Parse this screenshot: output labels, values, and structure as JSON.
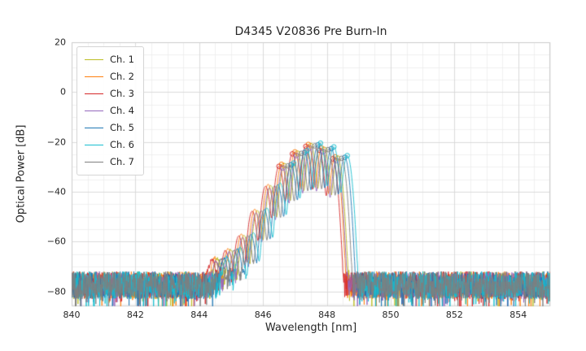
{
  "chart_data": {
    "type": "line",
    "title": "D4345 V20836 Pre Burn-In",
    "xlabel": "Wavelength [nm]",
    "ylabel": "Optical Power [dB]",
    "xlim": [
      840,
      855
    ],
    "ylim": [
      -86,
      20
    ],
    "x_tick_values": [
      840,
      842,
      844,
      846,
      848,
      850,
      852,
      854
    ],
    "x_tick_labels": [
      "840",
      "842",
      "844",
      "846",
      "848",
      "850",
      "852",
      "854"
    ],
    "y_tick_values": [
      20,
      0,
      -20,
      -40,
      -60,
      -80
    ],
    "y_tick_labels": [
      "20",
      "0",
      "−20",
      "−40",
      "−60",
      "−80"
    ],
    "grid": {
      "on": true,
      "major_x_step": 2,
      "major_y_step": 20,
      "minor_x_step": 0.5,
      "minor_y_step": 5
    },
    "legend_position": "upper left",
    "series": [
      {
        "name": "Ch. 1",
        "color": "#bcbd22",
        "peak_nm": 847.5,
        "peak_db": -21.5
      },
      {
        "name": "Ch. 2",
        "color": "#ff7f0e",
        "peak_nm": 847.42,
        "peak_db": -21.0
      },
      {
        "name": "Ch. 3",
        "color": "#d62728",
        "peak_nm": 847.34,
        "peak_db": -21.8
      },
      {
        "name": "Ch. 4",
        "color": "#9467bd",
        "peak_nm": 847.46,
        "peak_db": -22.5
      },
      {
        "name": "Ch. 5",
        "color": "#1f77b4",
        "peak_nm": 847.72,
        "peak_db": -21.2
      },
      {
        "name": "Ch. 6",
        "color": "#17becf",
        "peak_nm": 847.8,
        "peak_db": -20.5
      },
      {
        "name": "Ch. 7",
        "color": "#7f7f7f",
        "peak_nm": 847.62,
        "peak_db": -21.6
      }
    ],
    "spectrum_model": {
      "mode_spacing_nm": 0.42,
      "mode_sigma_nm": 0.07,
      "main_mode_index": 7,
      "mode_rel_db": [
        -46,
        -42,
        -36,
        -26,
        -16,
        -8,
        -3,
        0,
        -1.5,
        -5
      ],
      "marker_rel_db_threshold": -8.5
    },
    "noise": {
      "mean_db": -77.5,
      "span_db": 11,
      "dip_prob": 0.07,
      "dip_depth_db": 9,
      "seed_base": 42
    },
    "axes": {
      "face_color": "#ffffff",
      "grid_major_color": "#d8d8d8",
      "grid_minor_color": "#ebebeb",
      "spine_color": "#cccccc",
      "text_color": "#262626"
    }
  }
}
